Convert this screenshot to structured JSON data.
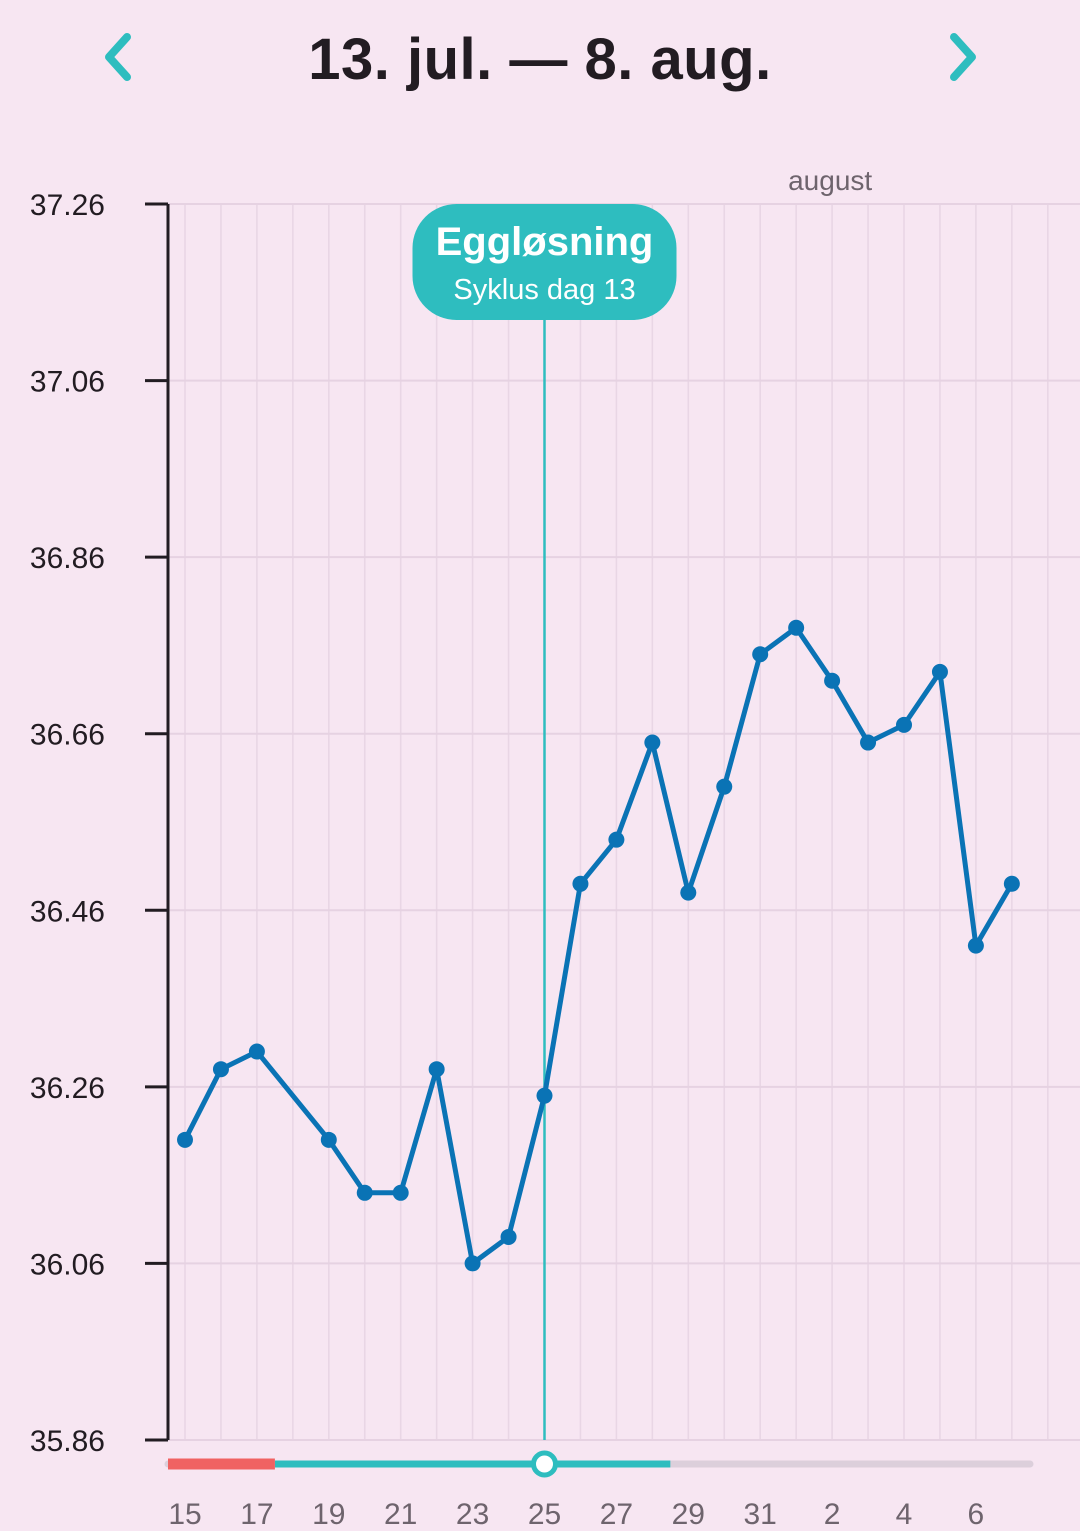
{
  "header": {
    "title": "13. jul. — 8. aug.",
    "prev_icon": "chevron-left-icon",
    "next_icon": "chevron-right-icon",
    "accent_color": "#2EBDBF"
  },
  "chart_data": {
    "type": "line",
    "title": "",
    "xlabel": "",
    "ylabel": "",
    "ylim": [
      35.86,
      37.26
    ],
    "yticks": [
      "37.26",
      "37.06",
      "36.86",
      "36.66",
      "36.46",
      "36.26",
      "36.06",
      "35.86"
    ],
    "x_dates": [
      "2023-07-13",
      "2023-08-08"
    ],
    "xtick_labels": [
      "15",
      "17",
      "19",
      "21",
      "23",
      "25",
      "27",
      "29",
      "31",
      "2",
      "4",
      "6"
    ],
    "month_label": "august",
    "grid": true,
    "series": [
      {
        "color": "#0A73B5",
        "points": [
          {
            "date": "15",
            "value": 36.2
          },
          {
            "date": "16",
            "value": 36.28
          },
          {
            "date": "17",
            "value": 36.3
          },
          {
            "date": "19",
            "value": 36.2
          },
          {
            "date": "20",
            "value": 36.14
          },
          {
            "date": "21",
            "value": 36.14
          },
          {
            "date": "22",
            "value": 36.28
          },
          {
            "date": "23",
            "value": 36.06
          },
          {
            "date": "24",
            "value": 36.09
          },
          {
            "date": "25",
            "value": 36.25
          },
          {
            "date": "26",
            "value": 36.49
          },
          {
            "date": "27",
            "value": 36.54
          },
          {
            "date": "28",
            "value": 36.65
          },
          {
            "date": "29",
            "value": 36.48
          },
          {
            "date": "30",
            "value": 36.6
          },
          {
            "date": "31",
            "value": 36.75
          },
          {
            "date": "1",
            "value": 36.78
          },
          {
            "date": "2",
            "value": 36.72
          },
          {
            "date": "3",
            "value": 36.65
          },
          {
            "date": "4",
            "value": 36.67
          },
          {
            "date": "5",
            "value": 36.73
          },
          {
            "date": "6",
            "value": 36.42
          },
          {
            "date": "7",
            "value": 36.49
          }
        ]
      }
    ],
    "annotation": {
      "date": "25",
      "title": "Eggløsning",
      "subtitle": "Syklus dag 13",
      "color": "#2EBDBF"
    },
    "cycle_bar": {
      "period_color": "#F06262",
      "fertile_color": "#2EBDBF",
      "rest_color": "#DCCFDB",
      "period_range": [
        "13",
        "17"
      ],
      "fertile_range": [
        "17",
        "28"
      ],
      "ovulation_date": "25"
    }
  }
}
